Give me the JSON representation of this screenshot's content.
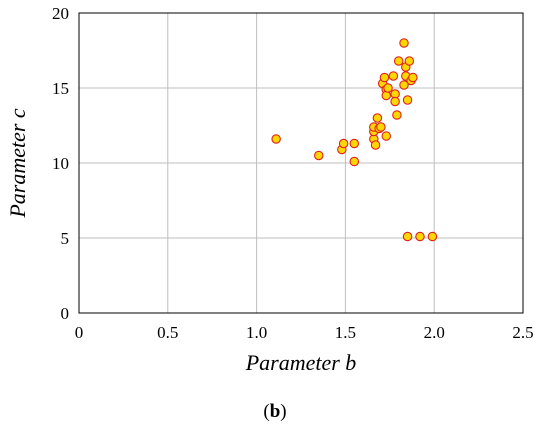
{
  "chart_data": {
    "type": "scatter",
    "xlabel": "Parameter b",
    "ylabel": "Parameter c",
    "xlim": [
      0,
      2.5
    ],
    "ylim": [
      0,
      20
    ],
    "xticks": [
      "0",
      "0.5",
      "1.0",
      "1.5",
      "2.0",
      "2.5"
    ],
    "yticks": [
      "0",
      "5",
      "10",
      "15",
      "20"
    ],
    "grid": true,
    "caption_open": "(",
    "caption_letter": "b",
    "caption_close": ")",
    "marker_fill": "#FFD700",
    "marker_stroke": "#E0201B",
    "grid_color": "#BFBFBF",
    "series": [
      {
        "x": [
          1.11,
          1.35,
          1.48,
          1.49,
          1.55,
          1.55,
          1.66,
          1.66,
          1.66,
          1.67,
          1.68,
          1.69,
          1.7,
          1.71,
          1.72,
          1.73,
          1.73,
          1.73,
          1.74,
          1.77,
          1.78,
          1.78,
          1.79,
          1.8,
          1.83,
          1.83,
          1.84,
          1.84,
          1.85,
          1.86,
          1.87,
          1.88,
          1.85,
          1.92,
          1.99
        ],
        "y": [
          11.6,
          10.5,
          10.9,
          11.3,
          10.1,
          11.3,
          11.6,
          12.1,
          12.4,
          11.2,
          13.0,
          12.3,
          12.4,
          15.3,
          15.7,
          14.9,
          14.5,
          11.8,
          15.0,
          15.8,
          14.6,
          14.1,
          13.2,
          16.8,
          15.2,
          18.0,
          16.4,
          15.8,
          14.2,
          16.8,
          15.5,
          15.7,
          5.1,
          5.1,
          5.1
        ]
      }
    ]
  }
}
